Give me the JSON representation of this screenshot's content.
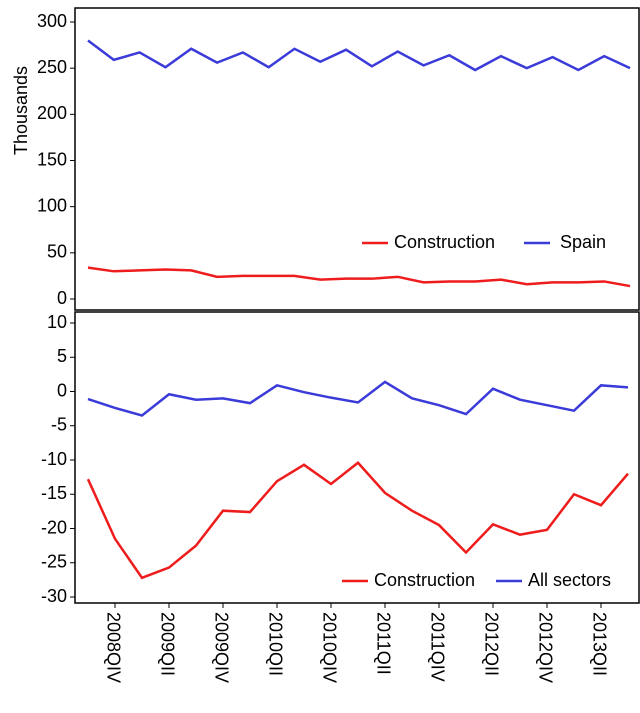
{
  "chart_data": [
    {
      "type": "line",
      "y_label": "Thousands",
      "ylim": [
        0,
        300
      ],
      "yticks": [
        0,
        50,
        100,
        150,
        200,
        250,
        300
      ],
      "legend": "lower right",
      "series": [
        {
          "name": "Construction",
          "color": "#ee1c1c",
          "values": [
            34,
            30,
            31,
            32,
            31,
            24,
            25,
            25,
            25,
            21,
            22,
            22,
            24,
            18,
            19,
            19,
            21,
            16,
            18,
            18,
            19,
            14
          ]
        },
        {
          "name": "Spain",
          "color": "#3b3bd9",
          "values": [
            280,
            259,
            267,
            251,
            271,
            256,
            267,
            251,
            271,
            257,
            270,
            252,
            268,
            253,
            264,
            248,
            263,
            250,
            262,
            248,
            263,
            250
          ]
        }
      ]
    },
    {
      "type": "line",
      "ylim": [
        -30,
        10
      ],
      "yticks": [
        -30,
        -25,
        -20,
        -15,
        -10,
        -5,
        0,
        5,
        10
      ],
      "legend": "lower right",
      "categories": [
        null,
        "2008QIV",
        null,
        "2009QII",
        null,
        "2009QIV",
        null,
        "2010QII",
        null,
        "2010QIV",
        null,
        "2011QII",
        null,
        "2011QIV",
        null,
        "2012QII",
        null,
        "2012QIV",
        null,
        "2013QII",
        null
      ],
      "series": [
        {
          "name": "Construction",
          "color": "#ee1c1c",
          "values": [
            -12.8,
            -21.5,
            -27.2,
            -25.7,
            -22.5,
            -17.4,
            -17.6,
            -13.1,
            -10.7,
            -13.5,
            -10.4,
            -14.8,
            -17.4,
            -19.5,
            -23.5,
            -19.4,
            -20.9,
            -20.2,
            -15.0,
            -16.6,
            -12.0
          ]
        },
        {
          "name": "All sectors",
          "color": "#3b3bd9",
          "values": [
            -1.1,
            -2.4,
            -3.5,
            -0.4,
            -1.2,
            -1.0,
            -1.7,
            0.9,
            -0.1,
            -0.9,
            -1.6,
            1.4,
            -1.0,
            -2.0,
            -3.3,
            0.4,
            -1.2,
            -2.0,
            -2.8,
            0.9,
            0.6
          ]
        }
      ]
    }
  ]
}
